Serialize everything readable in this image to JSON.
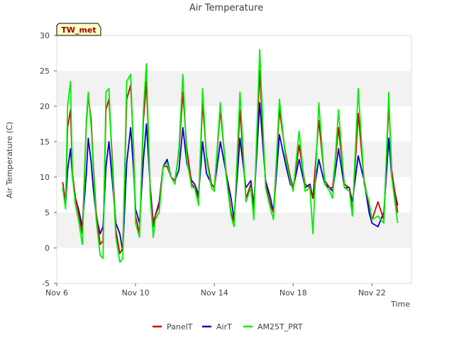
{
  "chart_data": {
    "type": "line",
    "title": "Air Temperature",
    "xlabel": "Time",
    "ylabel": "Air Temperature (C)",
    "station_label": "TW_met",
    "ylim": [
      -5,
      30
    ],
    "xlim": [
      "2023-11-06",
      "2023-11-24"
    ],
    "yticks": [
      -5,
      0,
      5,
      10,
      15,
      20,
      25,
      30
    ],
    "xtick_labels": [
      "Nov 6",
      "Nov 10",
      "Nov 14",
      "Nov 18",
      "Nov 22"
    ],
    "xtick_days": [
      6,
      10,
      14,
      18,
      22
    ],
    "grid": "horizontal bands",
    "legend_position": "bottom",
    "colors": {
      "PanelT": "#cc0000",
      "AirT": "#0000cc",
      "AM25T_PRT": "#00ee00",
      "band": "#f2f2f2"
    },
    "x_days": [
      6.3,
      6.45,
      6.55,
      6.7,
      6.8,
      6.95,
      7.1,
      7.3,
      7.5,
      7.6,
      7.75,
      7.85,
      8.0,
      8.2,
      8.35,
      8.5,
      8.65,
      8.8,
      9.0,
      9.2,
      9.35,
      9.55,
      9.75,
      9.9,
      10.0,
      10.2,
      10.4,
      10.55,
      10.75,
      10.9,
      11.0,
      11.2,
      11.4,
      11.6,
      11.8,
      12.0,
      12.2,
      12.4,
      12.6,
      12.85,
      13.0,
      13.2,
      13.4,
      13.6,
      13.85,
      14.0,
      14.3,
      14.6,
      14.85,
      15.0,
      15.3,
      15.6,
      15.85,
      16.0,
      16.3,
      16.6,
      16.85,
      17.0,
      17.3,
      17.6,
      17.85,
      18.0,
      18.3,
      18.6,
      18.85,
      19.0,
      19.3,
      19.6,
      19.85,
      20.0,
      20.3,
      20.6,
      20.85,
      21.0,
      21.3,
      21.6,
      21.85,
      22.0,
      22.3,
      22.6,
      22.85,
      23.0,
      23.3
    ],
    "series": [
      {
        "name": "PanelT",
        "values": [
          9.3,
          6.5,
          17.0,
          19.5,
          10.5,
          7.0,
          5.0,
          2.0,
          17.5,
          21.5,
          18.0,
          12.0,
          5.0,
          0.5,
          1.0,
          19.5,
          21.0,
          13.5,
          2.5,
          -0.8,
          0.0,
          21.0,
          23.0,
          14.0,
          4.5,
          2.0,
          18.0,
          23.5,
          8.0,
          3.0,
          4.5,
          6.0,
          11.5,
          11.5,
          10.0,
          9.5,
          13.5,
          22.0,
          14.0,
          9.0,
          8.5,
          7.0,
          20.5,
          13.0,
          9.0,
          8.5,
          19.5,
          10.5,
          5.0,
          3.5,
          19.5,
          7.0,
          9.0,
          5.0,
          25.0,
          9.0,
          6.0,
          5.0,
          19.5,
          13.5,
          10.0,
          8.5,
          14.5,
          9.0,
          8.5,
          7.0,
          18.0,
          9.5,
          8.5,
          8.5,
          17.0,
          9.0,
          8.5,
          5.0,
          19.0,
          9.5,
          6.0,
          4.0,
          6.5,
          4.0,
          20.5,
          11.0,
          5.0
        ]
      },
      {
        "name": "AirT",
        "values": [
          8.5,
          6.0,
          11.0,
          14.0,
          10.0,
          7.0,
          5.5,
          3.0,
          10.5,
          15.5,
          12.0,
          8.5,
          4.5,
          2.0,
          3.0,
          11.5,
          15.0,
          10.0,
          3.5,
          2.0,
          -0.5,
          12.0,
          17.0,
          11.0,
          5.5,
          3.5,
          12.5,
          17.5,
          8.5,
          3.5,
          4.5,
          6.5,
          11.5,
          12.5,
          10.0,
          9.5,
          11.0,
          17.0,
          12.0,
          9.5,
          9.0,
          7.5,
          15.0,
          10.5,
          9.0,
          8.5,
          15.0,
          10.5,
          7.0,
          4.0,
          15.5,
          8.5,
          9.5,
          6.0,
          20.5,
          9.5,
          7.0,
          5.0,
          16.0,
          12.0,
          9.0,
          8.5,
          12.5,
          8.5,
          9.0,
          7.0,
          12.5,
          9.0,
          8.5,
          8.0,
          14.0,
          8.5,
          8.5,
          6.5,
          13.0,
          9.5,
          5.0,
          3.5,
          3.0,
          5.0,
          15.5,
          10.0,
          6.0
        ]
      },
      {
        "name": "AM25T_PRT",
        "values": [
          8.5,
          5.5,
          20.0,
          23.5,
          10.0,
          6.0,
          4.0,
          0.5,
          18.0,
          22.0,
          17.0,
          11.5,
          4.0,
          -1.0,
          -1.5,
          22.0,
          22.5,
          12.5,
          1.5,
          -2.0,
          -1.5,
          23.5,
          24.5,
          13.5,
          3.5,
          1.5,
          19.5,
          26.0,
          7.0,
          1.5,
          4.0,
          5.0,
          11.5,
          12.0,
          10.0,
          9.0,
          14.0,
          24.5,
          12.5,
          8.5,
          8.5,
          6.0,
          22.5,
          12.5,
          8.5,
          8.0,
          20.5,
          10.0,
          4.5,
          3.0,
          22.0,
          6.5,
          8.5,
          4.0,
          28.0,
          8.5,
          5.5,
          4.0,
          21.0,
          13.0,
          9.5,
          8.0,
          16.5,
          8.0,
          8.5,
          2.0,
          20.5,
          9.0,
          8.0,
          7.0,
          19.5,
          8.5,
          8.0,
          4.5,
          22.5,
          9.0,
          6.5,
          4.0,
          4.5,
          3.5,
          22.0,
          10.0,
          3.5
        ]
      }
    ]
  }
}
